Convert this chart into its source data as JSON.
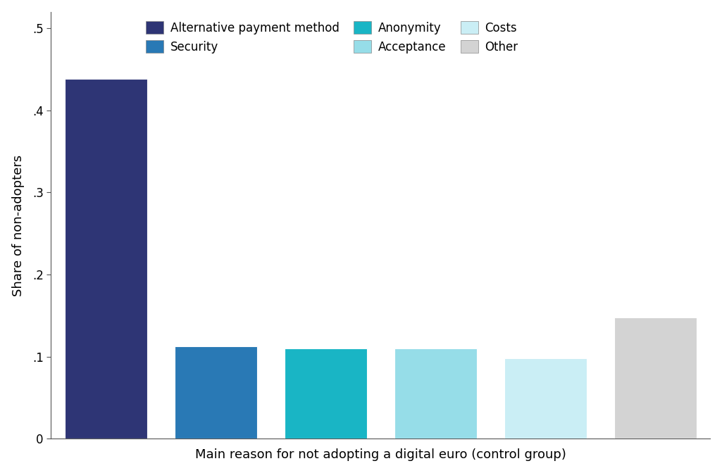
{
  "categories": [
    "Alternative payment method",
    "Security",
    "Anonymity",
    "Acceptance",
    "Costs",
    "Other"
  ],
  "values": [
    0.438,
    0.113,
    0.11,
    0.11,
    0.098,
    0.148
  ],
  "colors": [
    "#2e3575",
    "#2979b5",
    "#19b5c5",
    "#96dde8",
    "#caeef5",
    "#d3d3d3"
  ],
  "legend_labels_row1": [
    "Alternative payment method",
    "Security",
    "Anonymity"
  ],
  "legend_labels_row2": [
    "Acceptance",
    "Costs",
    "Other"
  ],
  "legend_colors": [
    "#2e3575",
    "#2979b5",
    "#19b5c5",
    "#96dde8",
    "#caeef5",
    "#d3d3d3"
  ],
  "ylabel": "Share of non-adopters",
  "xlabel": "Main reason for not adopting a digital euro (control group)",
  "yticks": [
    0,
    0.1,
    0.2,
    0.3,
    0.4,
    0.5
  ],
  "ytick_labels": [
    "0",
    ".1",
    ".2",
    ".3",
    ".4",
    ".5"
  ],
  "ylim": [
    0,
    0.52
  ],
  "axis_label_fontsize": 13,
  "tick_fontsize": 12,
  "legend_fontsize": 12,
  "background_color": "#ffffff"
}
